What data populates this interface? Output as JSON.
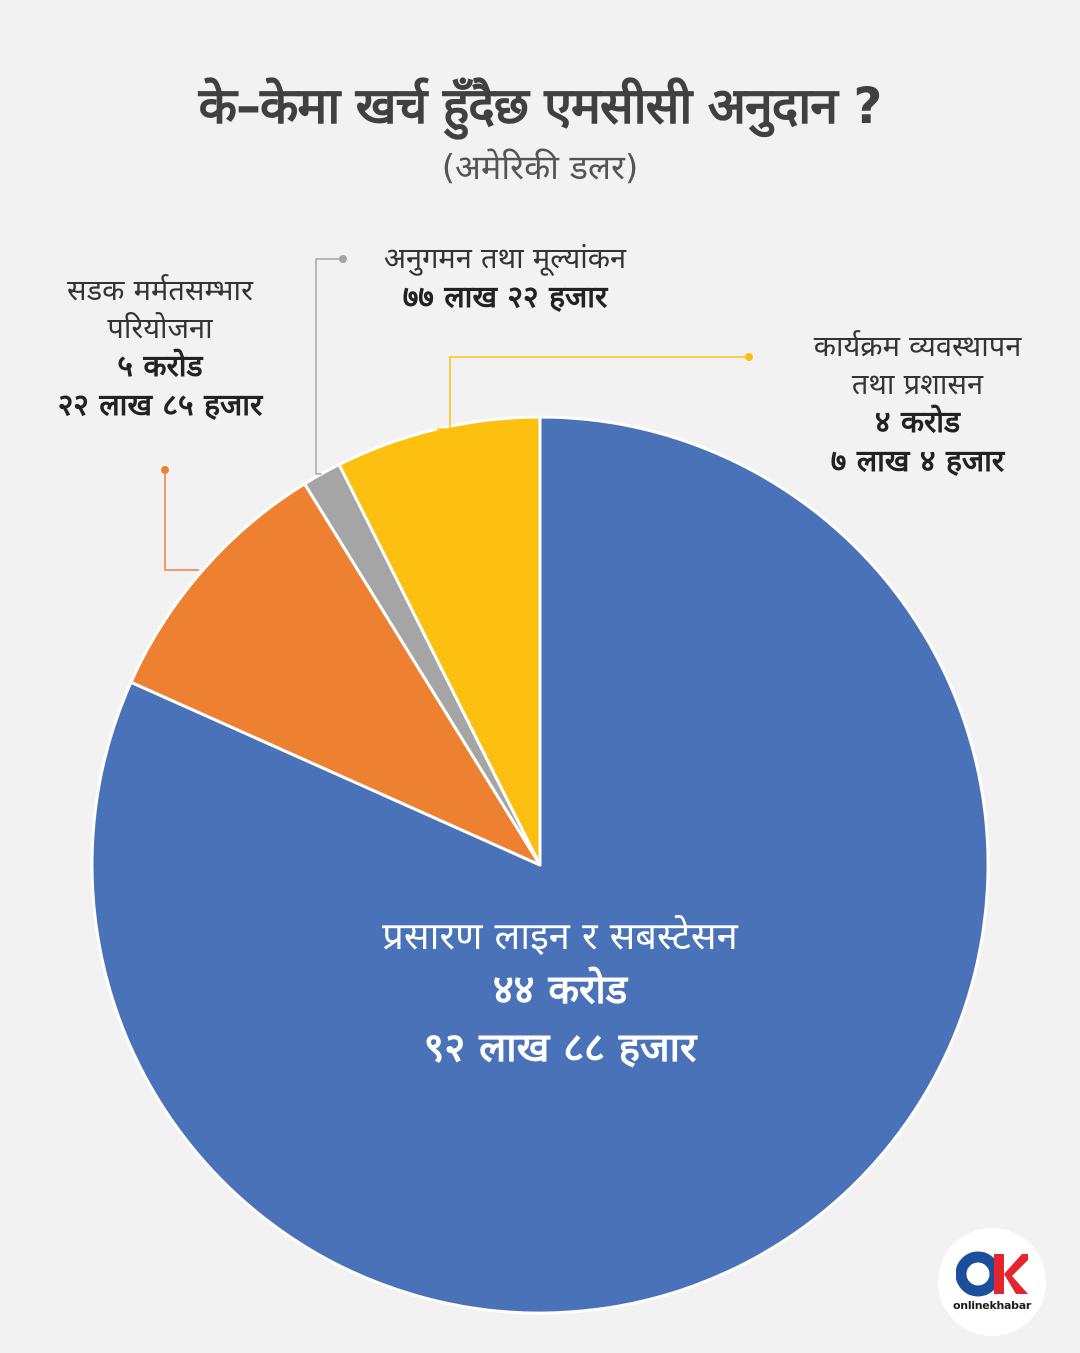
{
  "chart_data": {
    "type": "pie",
    "title": "के–केमा खर्च हुँदैछ एमसीसी अनुदान ?",
    "subtitle": "(अमेरिकी डलर)",
    "start_angle_deg": 0,
    "direction": "clockwise",
    "slices": [
      {
        "name": "प्रसारण लाइन र सबस्टेसन",
        "amount_line1": "४४ करोड",
        "amount_line2": "९२ लाख ८८ हजार",
        "value": 449288000,
        "color": "#4a72b8",
        "label_position": "inside-bottom"
      },
      {
        "name_line1": "सडक मर्मतसम्भार",
        "name_line2": "परियोजना",
        "amount_line1": "५ करोड",
        "amount_line2": "२२ लाख ८५ हजार",
        "value": 52285000,
        "color": "#ee8032",
        "label_position": "upper-left"
      },
      {
        "name": "अनुगमन तथा मूल्यांकन",
        "amount": "७७ लाख २२ हजार",
        "value": 7722000,
        "color": "#a5a5a5",
        "label_position": "top"
      },
      {
        "name_line1": "कार्यक्रम व्यवस्थापन",
        "name_line2": "तथा प्रशासन",
        "amount_line1": "४ करोड",
        "amount_line2": "७ लाख ४ हजार",
        "value": 40704000,
        "color": "#fdc010",
        "label_position": "upper-right"
      }
    ]
  },
  "logo": {
    "text": "onlinekhabar",
    "primary_color": "#1b4f9c",
    "accent_color": "#e3262d"
  }
}
